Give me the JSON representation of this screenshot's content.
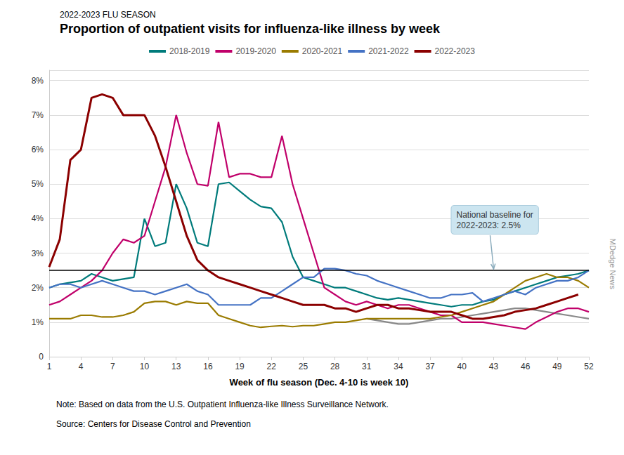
{
  "chart_data": {
    "type": "line",
    "subtitle": "2022-2023 FLU SEASON",
    "title": "Proportion of outpatient visits for influenza-like illness by week",
    "xlabel": "Week of flu season (Dec. 4-10 is week 10)",
    "note": "Note: Based on data from the U.S. Outpatient Influenza-like Illness Surveillance Network.",
    "source": "Source: Centers for Disease Control and Prevention",
    "watermark": "MDedge News",
    "x": [
      1,
      2,
      3,
      4,
      5,
      6,
      7,
      8,
      9,
      10,
      11,
      12,
      13,
      14,
      15,
      16,
      17,
      18,
      19,
      20,
      21,
      22,
      23,
      24,
      25,
      26,
      27,
      28,
      29,
      30,
      31,
      32,
      33,
      34,
      35,
      36,
      37,
      38,
      39,
      40,
      41,
      42,
      43,
      44,
      45,
      46,
      47,
      48,
      49,
      50,
      51,
      52
    ],
    "xlim": [
      1,
      52
    ],
    "xticks": [
      1,
      4,
      7,
      10,
      13,
      16,
      19,
      22,
      25,
      28,
      31,
      34,
      37,
      40,
      43,
      46,
      49,
      52
    ],
    "ylim": [
      0,
      8.3
    ],
    "yticks": [
      0,
      {
        "value": 1,
        "label": "1%"
      },
      {
        "value": 2,
        "label": "2%"
      },
      {
        "value": 3,
        "label": "3%"
      },
      {
        "value": 4,
        "label": "4%"
      },
      {
        "value": 5,
        "label": "5%"
      },
      {
        "value": 6,
        "label": "6%"
      },
      {
        "value": 7,
        "label": "7%"
      },
      {
        "value": 8,
        "label": "8%"
      }
    ],
    "grid": true,
    "legend": "top",
    "baseline": {
      "value": 2.5,
      "color": "#000000"
    },
    "annotations": [
      {
        "text": "National baseline for\n2022-2023: 2.5%",
        "x": 43,
        "y": 2.5
      }
    ],
    "series": [
      {
        "name": "2018-2019",
        "color": "#007b7b",
        "values": [
          2.0,
          2.1,
          2.15,
          2.2,
          2.4,
          2.3,
          2.2,
          2.25,
          2.3,
          4.0,
          3.2,
          3.3,
          5.0,
          4.3,
          3.3,
          3.2,
          5.0,
          5.05,
          4.8,
          4.55,
          4.35,
          4.3,
          3.9,
          2.9,
          2.3,
          2.2,
          2.1,
          2.0,
          2.0,
          1.9,
          1.8,
          1.7,
          1.65,
          1.7,
          1.65,
          1.6,
          1.55,
          1.5,
          1.45,
          1.5,
          1.5,
          1.6,
          1.65,
          1.8,
          1.9,
          2.0,
          2.1,
          2.2,
          2.3,
          2.35,
          2.4,
          2.5
        ]
      },
      {
        "name": "2019-2020",
        "color": "#c0006a",
        "values": [
          1.5,
          1.6,
          1.8,
          2.0,
          2.2,
          2.5,
          3.0,
          3.4,
          3.3,
          3.5,
          4.5,
          5.5,
          7.0,
          5.9,
          5.0,
          4.95,
          6.8,
          5.2,
          5.3,
          5.3,
          5.2,
          5.2,
          6.4,
          5.0,
          4.0,
          3.0,
          2.0,
          1.8,
          1.6,
          1.5,
          1.6,
          1.5,
          1.4,
          1.5,
          1.5,
          1.4,
          1.3,
          1.2,
          1.2,
          1.0,
          1.0,
          1.0,
          0.95,
          0.9,
          0.85,
          0.8,
          1.0,
          1.15,
          1.3,
          1.4,
          1.4,
          1.3
        ]
      },
      {
        "name": "2020-2021",
        "color": "#9a7b00",
        "values": [
          1.1,
          1.1,
          1.1,
          1.2,
          1.2,
          1.15,
          1.15,
          1.2,
          1.3,
          1.55,
          1.6,
          1.6,
          1.5,
          1.6,
          1.55,
          1.55,
          1.2,
          1.1,
          1.0,
          0.9,
          0.85,
          0.88,
          0.9,
          0.87,
          0.9,
          0.9,
          0.95,
          1.0,
          1.0,
          1.05,
          1.1,
          1.1,
          1.1,
          1.1,
          1.1,
          1.1,
          1.1,
          1.15,
          1.2,
          1.3,
          1.4,
          1.5,
          1.6,
          1.8,
          2.0,
          2.2,
          2.3,
          2.4,
          2.3,
          2.3,
          2.2,
          2.0
        ]
      },
      {
        "name": "2021-2022",
        "color": "#4472c4",
        "values": [
          2.0,
          2.1,
          2.1,
          2.0,
          2.1,
          2.2,
          2.1,
          2.0,
          1.9,
          1.9,
          1.8,
          1.9,
          2.0,
          2.1,
          1.9,
          1.8,
          1.5,
          1.5,
          1.5,
          1.5,
          1.7,
          1.7,
          1.9,
          2.1,
          2.3,
          2.3,
          2.55,
          2.55,
          2.5,
          2.4,
          2.35,
          2.2,
          2.1,
          2.0,
          1.9,
          1.8,
          1.7,
          1.7,
          1.8,
          1.8,
          1.85,
          1.6,
          1.7,
          1.8,
          1.9,
          1.8,
          2.0,
          2.1,
          2.2,
          2.2,
          2.3,
          2.5
        ]
      },
      {
        "name": "2022-2023",
        "color": "#8b0000",
        "values": [
          2.6,
          3.4,
          5.7,
          6.0,
          7.5,
          7.6,
          7.5,
          7.0,
          7.0,
          7.0,
          6.4,
          5.5,
          4.5,
          3.5,
          2.8,
          2.5,
          2.3,
          2.2,
          2.1,
          2.0,
          1.9,
          1.8,
          1.7,
          1.6,
          1.5,
          1.5,
          1.5,
          1.4,
          1.4,
          1.3,
          1.4,
          1.5,
          1.5,
          1.4,
          1.4,
          1.35,
          1.3,
          1.3,
          1.3,
          1.2,
          1.1,
          1.1,
          1.15,
          1.2,
          1.3,
          1.35,
          1.4,
          1.5,
          1.6,
          1.7,
          1.8,
          null
        ]
      },
      {
        "color": "#888888",
        "values": [
          null,
          null,
          null,
          null,
          null,
          null,
          null,
          null,
          null,
          null,
          null,
          null,
          null,
          null,
          null,
          null,
          null,
          null,
          null,
          null,
          null,
          null,
          null,
          null,
          null,
          null,
          null,
          null,
          null,
          null,
          1.1,
          1.05,
          1.0,
          0.95,
          0.95,
          1.0,
          1.05,
          1.1,
          1.1,
          1.15,
          1.2,
          1.25,
          1.3,
          1.35,
          1.4,
          1.4,
          1.35,
          1.3,
          1.25,
          1.2,
          1.15,
          1.1
        ]
      }
    ]
  }
}
